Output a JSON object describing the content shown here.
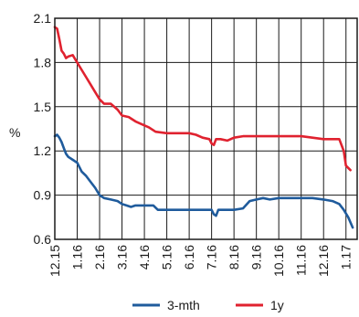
{
  "chart_data": {
    "type": "line",
    "title": "",
    "xlabel": "",
    "ylabel": "%",
    "ylim": [
      0.6,
      2.1
    ],
    "yticks": [
      "0.6",
      "0.9",
      "1.2",
      "1.5",
      "1.8",
      "2.1"
    ],
    "xticks": [
      "12.15",
      "1.16",
      "2.16",
      "3.16",
      "4.16",
      "5.16",
      "6.16",
      "7.16",
      "8.16",
      "9.16",
      "10.16",
      "11.16",
      "12.16",
      "1.17"
    ],
    "grid": true,
    "legend_position": "bottom",
    "series": [
      {
        "name": "3-mth",
        "color": "#1f5b9c",
        "x": [
          0,
          0.1,
          0.2,
          0.3,
          0.4,
          0.5,
          0.6,
          0.8,
          1.0,
          1.2,
          1.4,
          1.6,
          1.8,
          2.0,
          2.2,
          2.5,
          2.8,
          3.0,
          3.2,
          3.4,
          3.6,
          4.0,
          4.4,
          4.6,
          5.0,
          5.5,
          6.0,
          6.5,
          7.0,
          7.1,
          7.2,
          7.3,
          7.6,
          8.0,
          8.4,
          8.7,
          9.0,
          9.3,
          9.6,
          10.0,
          10.5,
          11.0,
          11.5,
          12.0,
          12.4,
          12.7,
          12.9,
          13.1,
          13.3
        ],
        "values": [
          1.3,
          1.31,
          1.29,
          1.26,
          1.22,
          1.18,
          1.16,
          1.14,
          1.12,
          1.06,
          1.03,
          0.99,
          0.95,
          0.9,
          0.88,
          0.87,
          0.86,
          0.84,
          0.83,
          0.82,
          0.83,
          0.83,
          0.83,
          0.8,
          0.8,
          0.8,
          0.8,
          0.8,
          0.8,
          0.77,
          0.76,
          0.8,
          0.8,
          0.8,
          0.81,
          0.86,
          0.87,
          0.88,
          0.87,
          0.88,
          0.88,
          0.88,
          0.88,
          0.87,
          0.86,
          0.84,
          0.8,
          0.75,
          0.68
        ]
      },
      {
        "name": "1y",
        "color": "#e0222f",
        "x": [
          0,
          0.1,
          0.2,
          0.3,
          0.4,
          0.5,
          0.6,
          0.8,
          1.0,
          1.2,
          1.4,
          1.6,
          1.8,
          2.0,
          2.2,
          2.5,
          2.8,
          3.0,
          3.3,
          3.6,
          3.9,
          4.2,
          4.5,
          5.0,
          5.5,
          6.0,
          6.3,
          6.6,
          6.9,
          7.0,
          7.1,
          7.2,
          7.4,
          7.7,
          8.0,
          8.4,
          8.7,
          9.0,
          9.5,
          10.0,
          10.5,
          11.0,
          11.5,
          12.0,
          12.4,
          12.7,
          12.9,
          13.0,
          13.2
        ],
        "values": [
          2.04,
          2.03,
          1.96,
          1.88,
          1.86,
          1.83,
          1.84,
          1.85,
          1.8,
          1.75,
          1.7,
          1.65,
          1.6,
          1.55,
          1.52,
          1.52,
          1.48,
          1.44,
          1.43,
          1.4,
          1.38,
          1.36,
          1.33,
          1.32,
          1.32,
          1.32,
          1.31,
          1.29,
          1.28,
          1.25,
          1.24,
          1.28,
          1.28,
          1.27,
          1.29,
          1.3,
          1.3,
          1.3,
          1.3,
          1.3,
          1.3,
          1.3,
          1.29,
          1.28,
          1.28,
          1.28,
          1.2,
          1.1,
          1.07
        ]
      }
    ]
  }
}
